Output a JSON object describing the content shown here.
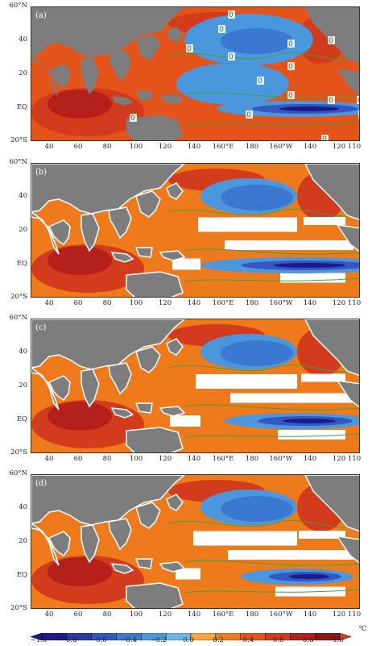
{
  "panels": [
    {
      "label": "(a)",
      "top": 8
    },
    {
      "label": "(b)",
      "top": 202
    },
    {
      "label": "(c)",
      "top": 395
    },
    {
      "label": "(d)",
      "top": 588
    }
  ],
  "lat_labels": [
    "60°N",
    "40",
    "20",
    "EQ",
    "20°S"
  ],
  "lon_labels": [
    "40",
    "60",
    "80",
    "100",
    "120",
    "140",
    "160°E",
    "180",
    "160°W",
    "140",
    "120",
    "110"
  ],
  "contour_zero_label": "0",
  "colorbar": {
    "labels": [
      "−1.0",
      "−0.8",
      "−0.6",
      "−0.4",
      "−0.2",
      "0.0",
      "0.2",
      "0.4",
      "0.6",
      "0.8",
      "1.0"
    ],
    "unit": "℃",
    "colors": [
      "#1b1a8c",
      "#2b3aa8",
      "#3557c2",
      "#3b78d1",
      "#4b97de",
      "#6db6ea",
      "#f6a43b",
      "#ef7a1c",
      "#e4531a",
      "#d23b1b",
      "#b5211a",
      "#8e1716",
      "#c85a5a"
    ]
  },
  "colors": {
    "land": "#7d7d7d",
    "contour": "#3ca33c",
    "mask": "#ffffff"
  }
}
